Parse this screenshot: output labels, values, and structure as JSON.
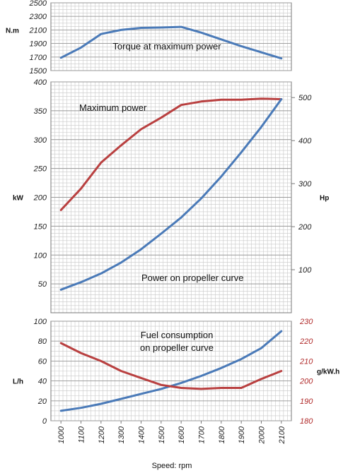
{
  "chart_data": [
    {
      "type": "line",
      "x": [
        1000,
        1100,
        1200,
        1300,
        1400,
        1500,
        1600,
        1700,
        1800,
        1900,
        2000,
        2100
      ],
      "series": [
        {
          "values": [
            1690,
            1840,
            2040,
            2100,
            2130,
            2135,
            2145,
            2060,
            1960,
            1860,
            1770,
            1680
          ],
          "color": "#4a7ab8"
        }
      ],
      "annotations": [
        "Torque at maximum power"
      ],
      "ylabel": "N.m",
      "ylim": [
        1500,
        2500
      ],
      "yticks": [
        "1500",
        "1700",
        "1900",
        "2100",
        "2300",
        "2500"
      ],
      "grid": true
    },
    {
      "type": "line",
      "x": [
        1000,
        1100,
        1200,
        1300,
        1400,
        1500,
        1600,
        1700,
        1800,
        1900,
        2000,
        2100
      ],
      "series": [
        {
          "values": [
            178,
            215,
            260,
            290,
            318,
            338,
            360,
            366,
            369,
            369,
            371,
            370
          ],
          "color": "#b94040"
        },
        {
          "values": [
            40,
            53,
            68,
            87,
            110,
            137,
            165,
            198,
            236,
            278,
            322,
            370
          ],
          "color": "#4a7ab8"
        }
      ],
      "annotations": [
        "Maximum power",
        "Power on propeller curve"
      ],
      "ylabel": "kW",
      "ylim": [
        0,
        400
      ],
      "yticks": [
        "50",
        "100",
        "150",
        "200",
        "250",
        "300",
        "350",
        "400"
      ],
      "y2label": "Hp",
      "y2ticks": [
        "100",
        "200",
        "300",
        "400",
        "500"
      ],
      "grid": true
    },
    {
      "type": "line",
      "x": [
        1000,
        1100,
        1200,
        1300,
        1400,
        1500,
        1600,
        1700,
        1800,
        1900,
        2000,
        2100
      ],
      "series": [
        {
          "values": [
            10,
            13,
            17,
            22,
            27,
            32,
            38,
            45,
            53,
            62,
            73,
            90
          ],
          "color": "#4a7ab8",
          "axis": "left"
        },
        {
          "values": [
            219,
            214,
            210,
            205,
            201.5,
            198,
            196.5,
            196,
            196.5,
            196.5,
            201,
            205
          ],
          "color": "#b94040",
          "axis": "right"
        }
      ],
      "annotations": [
        "Fuel consumption",
        "on propeller curve"
      ],
      "ylabel": "L/h",
      "ylim": [
        0,
        100
      ],
      "yticks": [
        "0",
        "20",
        "40",
        "60",
        "80",
        "100"
      ],
      "y2label": "g/kW.h",
      "y2lim": [
        180,
        230
      ],
      "y2ticks": [
        "180",
        "190",
        "200",
        "210",
        "220",
        "230"
      ],
      "xticks": [
        "1000",
        "1100",
        "1200",
        "1300",
        "1400",
        "1500",
        "1600",
        "1700",
        "1800",
        "1900",
        "2000",
        "2100"
      ],
      "xlabel": "Speed: rpm",
      "grid": true
    }
  ]
}
